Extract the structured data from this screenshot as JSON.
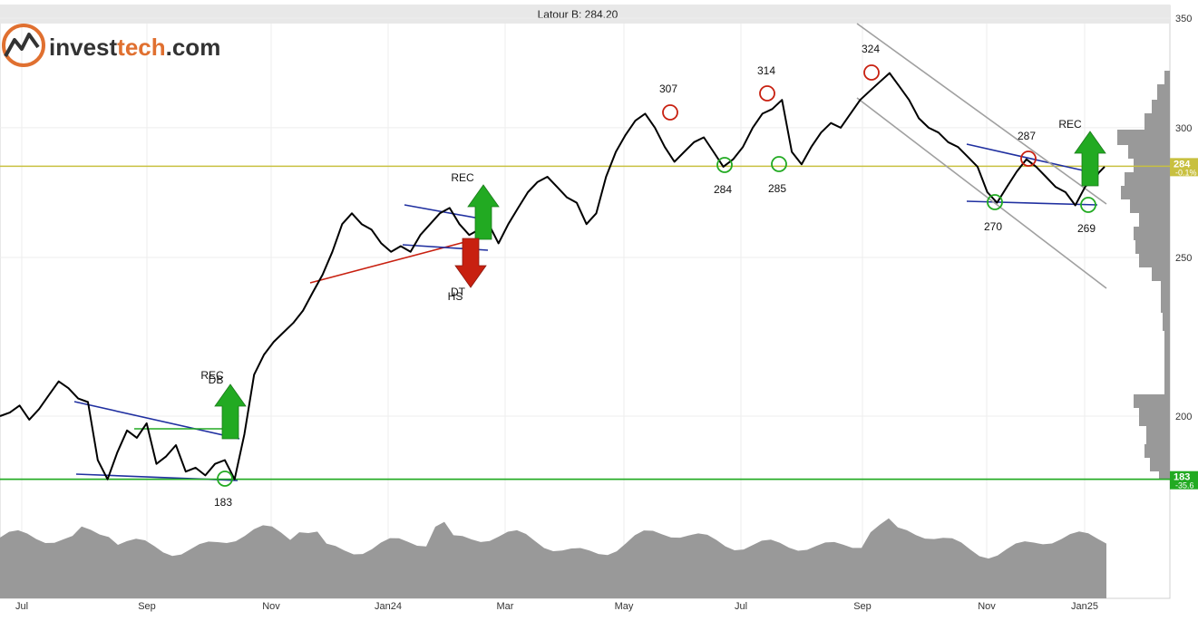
{
  "chart_data": {
    "type": "line",
    "title": "Latour B: 284.20",
    "logo": {
      "text_dark": "invest",
      "text_orange": "tech",
      "text_suffix": ".com"
    },
    "x_tick_labels": [
      "Jul",
      "Sep",
      "Nov",
      "Jan24",
      "Mar",
      "May",
      "Jul",
      "Sep",
      "Nov",
      "Jan25"
    ],
    "y_tick_labels": [
      "350",
      "300",
      "250",
      "200"
    ],
    "y_scale": "log",
    "ylim": [
      175,
      350
    ],
    "grid": true,
    "series": [
      {
        "values": [
          200,
          201,
          203,
          199,
          202,
          206,
          210,
          208,
          205,
          204,
          188,
          183,
          190,
          196,
          194,
          198,
          187,
          189,
          192,
          185,
          186,
          184,
          187,
          188,
          183,
          195,
          212,
          218,
          222,
          225,
          228,
          232,
          238,
          244,
          252,
          262,
          266,
          262,
          260,
          255,
          252,
          254,
          252,
          258,
          262,
          266,
          268,
          262,
          258,
          260,
          262,
          255,
          262,
          268,
          274,
          278,
          280,
          276,
          272,
          270,
          262,
          266,
          280,
          290,
          297,
          303,
          306,
          300,
          292,
          286,
          290,
          294,
          296,
          290,
          284,
          287,
          292,
          300,
          306,
          308,
          312,
          290,
          285,
          292,
          298,
          302,
          300,
          306,
          312,
          316,
          320,
          324,
          318,
          312,
          304,
          300,
          298,
          294,
          292,
          288,
          284,
          274,
          270,
          276,
          282,
          287,
          284,
          280,
          276,
          274,
          269,
          276,
          280,
          284
        ]
      }
    ],
    "volume_profile_note": "price distribution histogram shown at right",
    "horizontal_lines": [
      {
        "value": 284.2,
        "color": "#c8c040",
        "label_main": "284",
        "label_sub": "-0.1%"
      },
      {
        "value": 183,
        "color": "#22aa22",
        "label_main": "183",
        "label_sub": "-35.6"
      }
    ],
    "annotations": [
      {
        "text": "307",
        "kind": "top"
      },
      {
        "text": "314",
        "kind": "top"
      },
      {
        "text": "324",
        "kind": "top"
      },
      {
        "text": "287",
        "kind": "top"
      },
      {
        "text": "284",
        "kind": "bottom"
      },
      {
        "text": "285",
        "kind": "bottom"
      },
      {
        "text": "270",
        "kind": "bottom"
      },
      {
        "text": "269",
        "kind": "bottom"
      },
      {
        "text": "183",
        "kind": "bottom"
      }
    ],
    "signals": [
      {
        "text": "REC",
        "direction": "up"
      },
      {
        "text": "DB",
        "direction": "up"
      },
      {
        "text": "REC",
        "direction": "up"
      },
      {
        "text": "DT",
        "direction": "down"
      },
      {
        "text": "HS",
        "direction": "down"
      },
      {
        "text": "REC",
        "direction": "up"
      }
    ],
    "colors": {
      "price_line": "#000000",
      "trend_blue": "#2030a0",
      "trend_red": "#c82010",
      "trend_green": "#22aa22",
      "channel_gray": "#a0a0a0",
      "volume_gray": "#999999",
      "arrow_up": "#22aa22",
      "arrow_down": "#c82010",
      "circle_top": "#c82010",
      "circle_bottom": "#22aa22"
    }
  }
}
